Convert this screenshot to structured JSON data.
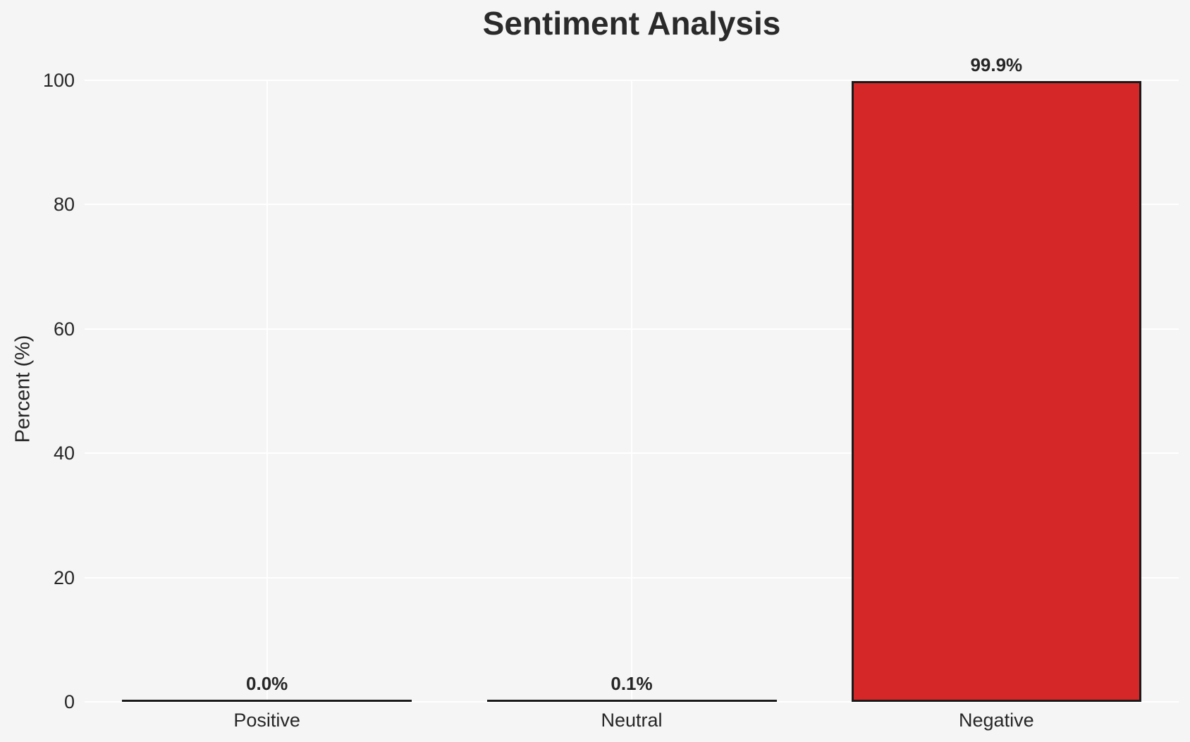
{
  "chart_data": {
    "type": "bar",
    "title": "Sentiment Analysis",
    "xlabel": "",
    "ylabel": "Percent (%)",
    "categories": [
      "Positive",
      "Neutral",
      "Negative"
    ],
    "values": [
      0.0,
      0.1,
      99.9
    ],
    "value_labels": [
      "0.0%",
      "0.1%",
      "99.9%"
    ],
    "ylim": [
      0,
      100
    ],
    "yticks": [
      0,
      20,
      40,
      60,
      80,
      100
    ],
    "grid": true,
    "legend": false,
    "colors": {
      "bar_fill": "#d62728",
      "bar_edge": "#1a1a1a",
      "background": "#f5f5f6",
      "gridline": "#ffffff",
      "text": "#262626"
    }
  }
}
